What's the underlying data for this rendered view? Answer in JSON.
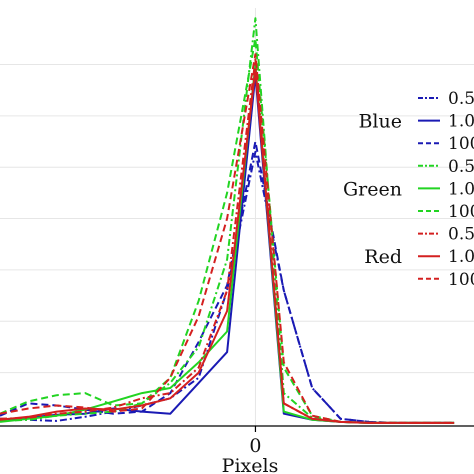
{
  "chart_data": {
    "type": "line",
    "title": "",
    "xlabel": "Pixels",
    "ylabel": "",
    "x_tick_labels": [
      "0"
    ],
    "x_tick_values": [
      0
    ],
    "xlim": [
      -9,
      7.7
    ],
    "ylim": [
      -0.002,
      0.405
    ],
    "grid": true,
    "legend_placement": "right",
    "groups": [
      {
        "label": "Blue",
        "color": "#1a1ab4"
      },
      {
        "label": "Green",
        "color": "#22d422"
      },
      {
        "label": "Red",
        "color": "#d42020"
      }
    ],
    "x": [
      -9,
      -8,
      -7,
      -6,
      -5,
      -4,
      -3,
      -2,
      -1,
      0,
      1,
      2,
      3,
      4,
      5,
      6,
      7
    ],
    "series": [
      {
        "name": "0.5",
        "group": "Blue",
        "color": "#1a1ab4",
        "dash": "dashdot",
        "values": [
          0.005,
          0.004,
          0.003,
          0.007,
          0.012,
          0.018,
          0.025,
          0.045,
          0.13,
          0.265,
          0.13,
          0.035,
          0.005,
          0.002,
          0.001,
          0.001,
          0.001
        ]
      },
      {
        "name": "1.0",
        "group": "Blue",
        "color": "#1a1ab4",
        "dash": "solid",
        "values": [
          0.004,
          0.006,
          0.009,
          0.01,
          0.015,
          0.012,
          0.01,
          0.04,
          0.07,
          0.34,
          0.01,
          0.004,
          0.002,
          0.001,
          0.001,
          0.001,
          0.001
        ]
      },
      {
        "name": "100",
        "group": "Blue",
        "color": "#1a1ab4",
        "dash": "dashed",
        "values": [
          0.008,
          0.02,
          0.018,
          0.014,
          0.01,
          0.012,
          0.03,
          0.08,
          0.135,
          0.275,
          0.13,
          0.035,
          0.005,
          0.002,
          0.001,
          0.001,
          0.001
        ]
      },
      {
        "name": "0.5",
        "group": "Green",
        "color": "#22d422",
        "dash": "dashdot",
        "values": [
          0.003,
          0.004,
          0.008,
          0.01,
          0.012,
          0.02,
          0.04,
          0.075,
          0.16,
          0.395,
          0.03,
          0.006,
          0.002,
          0.001,
          0.001,
          0.001,
          0.001
        ]
      },
      {
        "name": "1.0",
        "group": "Green",
        "color": "#22d422",
        "dash": "solid",
        "values": [
          0.002,
          0.005,
          0.008,
          0.014,
          0.022,
          0.03,
          0.035,
          0.06,
          0.09,
          0.35,
          0.012,
          0.004,
          0.002,
          0.001,
          0.001,
          0.001,
          0.001
        ]
      },
      {
        "name": "100",
        "group": "Green",
        "color": "#22d422",
        "dash": "dashed",
        "values": [
          0.01,
          0.022,
          0.028,
          0.03,
          0.018,
          0.02,
          0.045,
          0.12,
          0.225,
          0.375,
          0.055,
          0.008,
          0.002,
          0.001,
          0.001,
          0.001,
          0.001
        ]
      },
      {
        "name": "0.5",
        "group": "Red",
        "color": "#d42020",
        "dash": "dashdot",
        "values": [
          0.005,
          0.006,
          0.01,
          0.012,
          0.016,
          0.025,
          0.03,
          0.055,
          0.13,
          0.355,
          0.02,
          0.005,
          0.002,
          0.001,
          0.001,
          0.001,
          0.001
        ]
      },
      {
        "name": "1.0",
        "group": "Red",
        "color": "#d42020",
        "dash": "solid",
        "values": [
          0.004,
          0.007,
          0.012,
          0.015,
          0.014,
          0.018,
          0.025,
          0.05,
          0.11,
          0.345,
          0.02,
          0.005,
          0.002,
          0.001,
          0.001,
          0.001,
          0.001
        ]
      },
      {
        "name": "100",
        "group": "Red",
        "color": "#d42020",
        "dash": "dashed",
        "values": [
          0.01,
          0.015,
          0.018,
          0.016,
          0.012,
          0.015,
          0.045,
          0.105,
          0.2,
          0.36,
          0.06,
          0.008,
          0.002,
          0.001,
          0.001,
          0.001,
          0.001
        ]
      }
    ]
  }
}
